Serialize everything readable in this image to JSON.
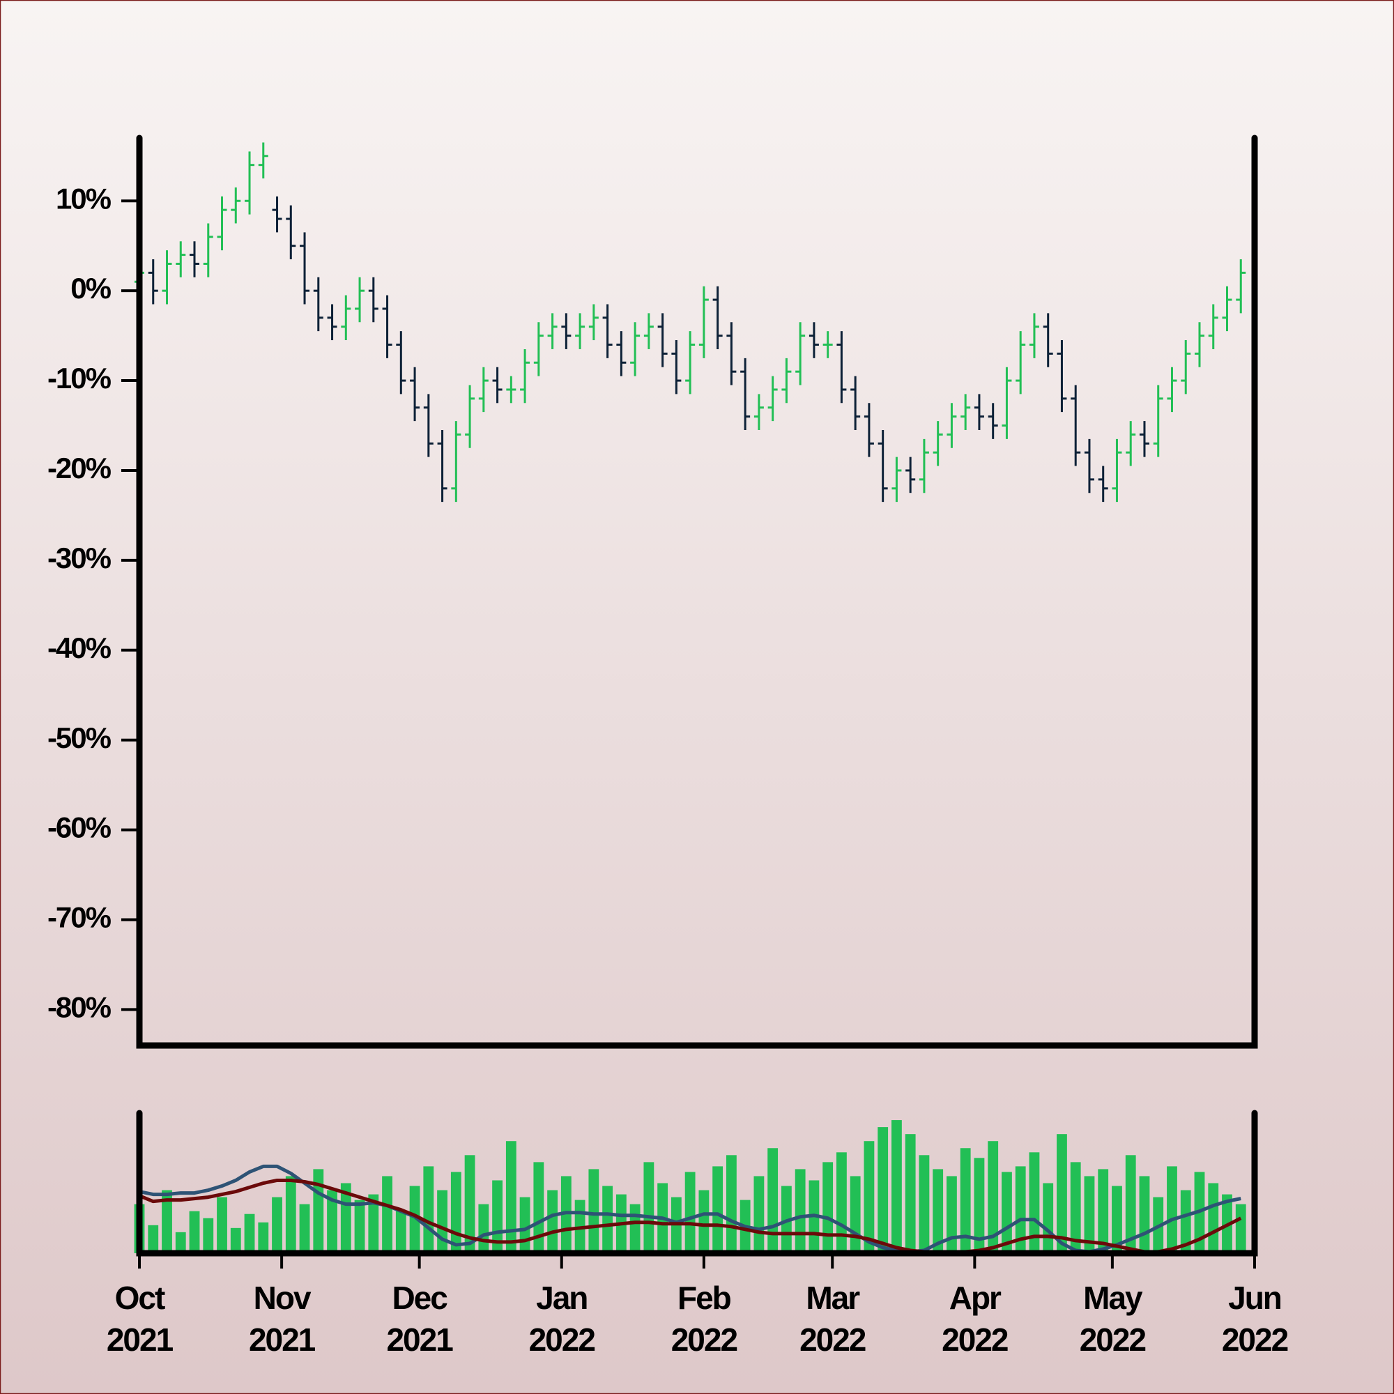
{
  "chart_data": [
    {
      "type": "ohlc",
      "x": [
        0,
        3,
        6,
        9,
        12,
        15,
        18,
        21,
        24,
        27,
        30,
        33,
        36,
        39,
        42,
        45,
        48,
        51,
        54,
        57,
        60,
        63,
        66,
        69,
        72,
        75,
        78,
        81,
        84,
        87,
        90,
        93,
        96,
        99,
        102,
        105,
        108,
        111,
        114,
        117,
        120,
        123,
        126,
        129,
        132,
        135,
        138,
        141,
        144,
        147,
        150,
        153,
        156,
        159,
        162,
        165,
        168,
        171,
        174,
        177,
        180,
        183,
        186,
        189,
        192,
        195,
        198,
        201,
        204,
        207,
        210,
        213,
        216,
        219,
        222,
        225,
        228,
        231,
        234,
        237,
        240
      ],
      "open": [
        1,
        2,
        0,
        3,
        4,
        3,
        6,
        9,
        10,
        14,
        9,
        8,
        5,
        0,
        -3,
        -4,
        -2,
        0,
        -2,
        -6,
        -10,
        -13,
        -17,
        -22,
        -16,
        -12,
        -10,
        -11,
        -11,
        -8,
        -5,
        -4,
        -5,
        -4,
        -3,
        -6,
        -8,
        -5,
        -4,
        -7,
        -10,
        -6,
        -1,
        -5,
        -9,
        -14,
        -13,
        -11,
        -9,
        -5,
        -6,
        -6,
        -11,
        -14,
        -17,
        -22,
        -20,
        -21,
        -18,
        -16,
        -14,
        -13,
        -14,
        -15,
        -10,
        -6,
        -4,
        -7,
        -12,
        -18,
        -21,
        -22,
        -18,
        -16,
        -17,
        -12,
        -10,
        -7,
        -5,
        -3,
        -1
      ],
      "high": [
        3.5,
        3.5,
        4.5,
        5.5,
        5.5,
        7.5,
        10.5,
        11.5,
        15.5,
        16.5,
        10.5,
        9.5,
        6.5,
        1.5,
        -1.5,
        -0.5,
        1.5,
        1.5,
        -0.5,
        -4.5,
        -8.5,
        -11.5,
        -15.5,
        -14.5,
        -10.5,
        -8.5,
        -8.5,
        -9.5,
        -6.5,
        -3.5,
        -2.5,
        -2.5,
        -2.5,
        -1.5,
        -1.5,
        -4.5,
        -3.5,
        -2.5,
        -2.5,
        -5.5,
        -4.5,
        0.5,
        0.5,
        -3.5,
        -7.5,
        -11.5,
        -9.5,
        -7.5,
        -3.5,
        -3.5,
        -4.5,
        -4.5,
        -9.5,
        -12.5,
        -15.5,
        -18.5,
        -18.5,
        -16.5,
        -14.5,
        -12.5,
        -11.5,
        -11.5,
        -12.5,
        -8.5,
        -4.5,
        -2.5,
        -2.5,
        -5.5,
        -10.5,
        -16.5,
        -19.5,
        -16.5,
        -14.5,
        -14.5,
        -10.5,
        -8.5,
        -5.5,
        -3.5,
        -1.5,
        0.5,
        3.5
      ],
      "low": [
        -0.5,
        -1.5,
        -1.5,
        1.5,
        1.5,
        1.5,
        4.5,
        7.5,
        8.5,
        12.5,
        6.5,
        3.5,
        -1.5,
        -4.5,
        -5.5,
        -5.5,
        -3.5,
        -3.5,
        -7.5,
        -11.5,
        -14.5,
        -18.5,
        -23.5,
        -23.5,
        -17.5,
        -13.5,
        -12.5,
        -12.5,
        -12.5,
        -9.5,
        -6.5,
        -6.5,
        -6.5,
        -5.5,
        -7.5,
        -9.5,
        -9.5,
        -6.5,
        -8.5,
        -11.5,
        -11.5,
        -7.5,
        -6.5,
        -10.5,
        -15.5,
        -15.5,
        -14.5,
        -12.5,
        -10.5,
        -7.5,
        -7.5,
        -12.5,
        -15.5,
        -18.5,
        -23.5,
        -23.5,
        -22.5,
        -22.5,
        -19.5,
        -17.5,
        -15.5,
        -15.5,
        -16.5,
        -16.5,
        -11.5,
        -7.5,
        -8.5,
        -13.5,
        -19.5,
        -22.5,
        -23.5,
        -23.5,
        -19.5,
        -18.5,
        -18.5,
        -13.5,
        -11.5,
        -8.5,
        -6.5,
        -4.5,
        -2.5
      ],
      "close": [
        2,
        0,
        3,
        4,
        3,
        6,
        9,
        10,
        14,
        15,
        8,
        5,
        0,
        -3,
        -4,
        -2,
        0,
        -2,
        -6,
        -10,
        -13,
        -17,
        -22,
        -16,
        -12,
        -10,
        -11,
        -11,
        -8,
        -5,
        -4,
        -5,
        -4,
        -3,
        -6,
        -8,
        -5,
        -4,
        -7,
        -10,
        -6,
        -1,
        -5,
        -9,
        -14,
        -13,
        -11,
        -9,
        -5,
        -6,
        -6,
        -11,
        -14,
        -17,
        -22,
        -20,
        -21,
        -18,
        -16,
        -14,
        -13,
        -14,
        -15,
        -10,
        -6,
        -4,
        -7,
        -12,
        -18,
        -21,
        -22,
        -18,
        -16,
        -17,
        -12,
        -10,
        -7,
        -5,
        -3,
        -1,
        2
      ],
      "up_color": "#22bf55",
      "down_color": "#0d2137",
      "xlim": [
        0,
        243
      ],
      "ylim": [
        -84,
        17
      ],
      "yticks": [
        {
          "value": 10,
          "label": "10%"
        },
        {
          "value": 0,
          "label": "0%"
        },
        {
          "value": -10,
          "label": "-10%"
        },
        {
          "value": -20,
          "label": "-20%"
        },
        {
          "value": -30,
          "label": "-30%"
        },
        {
          "value": -40,
          "label": "-40%"
        },
        {
          "value": -50,
          "label": "-50%"
        },
        {
          "value": -60,
          "label": "-60%"
        },
        {
          "value": -70,
          "label": "-70%"
        },
        {
          "value": -80,
          "label": "-80%"
        }
      ]
    },
    {
      "type": "volume",
      "x": [
        0,
        3,
        6,
        9,
        12,
        15,
        18,
        21,
        24,
        27,
        30,
        33,
        36,
        39,
        42,
        45,
        48,
        51,
        54,
        57,
        60,
        63,
        66,
        69,
        72,
        75,
        78,
        81,
        84,
        87,
        90,
        93,
        96,
        99,
        102,
        105,
        108,
        111,
        114,
        117,
        120,
        123,
        126,
        129,
        132,
        135,
        138,
        141,
        144,
        147,
        150,
        153,
        156,
        159,
        162,
        165,
        168,
        171,
        174,
        177,
        180,
        183,
        186,
        189,
        192,
        195,
        198,
        201,
        204,
        207,
        210,
        213,
        216,
        219,
        222,
        225,
        228,
        231,
        234,
        237,
        240
      ],
      "values": [
        35,
        20,
        45,
        15,
        30,
        25,
        40,
        18,
        28,
        22,
        40,
        55,
        35,
        60,
        45,
        50,
        38,
        42,
        55,
        30,
        48,
        62,
        45,
        58,
        70,
        35,
        52,
        80,
        40,
        65,
        45,
        55,
        38,
        60,
        48,
        42,
        35,
        65,
        50,
        40,
        58,
        45,
        62,
        70,
        38,
        55,
        75,
        48,
        60,
        52,
        65,
        72,
        55,
        80,
        90,
        95,
        85,
        70,
        60,
        55,
        75,
        68,
        80,
        58,
        62,
        72,
        50,
        85,
        65,
        55,
        60,
        48,
        70,
        55,
        40,
        62,
        45,
        58,
        50,
        42,
        35
      ],
      "color": "#22bf55",
      "series": [
        {
          "color": "#2e5375",
          "values": [
            44,
            42,
            42,
            43,
            43,
            45,
            48,
            52,
            58,
            62,
            62,
            57,
            50,
            43,
            38,
            35,
            35,
            36,
            34,
            30,
            26,
            18,
            10,
            6,
            7,
            13,
            15,
            16,
            17,
            22,
            27,
            29,
            29,
            28,
            28,
            27,
            27,
            26,
            25,
            22,
            25,
            28,
            28,
            23,
            19,
            17,
            19,
            23,
            26,
            27,
            25,
            20,
            14,
            8,
            4,
            2,
            1,
            2,
            7,
            11,
            12,
            10,
            12,
            18,
            24,
            24,
            16,
            7,
            2,
            1,
            3,
            6,
            10,
            14,
            19,
            24,
            27,
            30,
            34,
            37,
            39
          ]
        },
        {
          "color": "#6b0a0a",
          "values": [
            41,
            37,
            38,
            38,
            39,
            40,
            42,
            44,
            47,
            50,
            52,
            52,
            51,
            49,
            46,
            43,
            40,
            37,
            34,
            31,
            27,
            22,
            18,
            14,
            11,
            9,
            8,
            8,
            9,
            12,
            15,
            17,
            18,
            19,
            20,
            21,
            22,
            22,
            21,
            21,
            21,
            20,
            20,
            19,
            17,
            15,
            14,
            14,
            14,
            14,
            13,
            13,
            12,
            10,
            7,
            4,
            2,
            1,
            0,
            0,
            1,
            2,
            4,
            7,
            10,
            12,
            12,
            11,
            9,
            8,
            7,
            5,
            3,
            1,
            1,
            3,
            6,
            10,
            15,
            20,
            25
          ]
        }
      ],
      "xlim": [
        0,
        243
      ],
      "ylim": [
        0,
        100
      ],
      "xticks": [
        {
          "value": 0,
          "label": "Oct 2021"
        },
        {
          "value": 31,
          "label": "Nov 2021"
        },
        {
          "value": 61,
          "label": "Dec 2021"
        },
        {
          "value": 92,
          "label": "Jan 2022"
        },
        {
          "value": 123,
          "label": "Feb 2022"
        },
        {
          "value": 151,
          "label": "Mar 2022"
        },
        {
          "value": 182,
          "label": "Apr 2022"
        },
        {
          "value": 212,
          "label": "May 2022"
        },
        {
          "value": 243,
          "label": "Jun 2022"
        }
      ]
    }
  ]
}
